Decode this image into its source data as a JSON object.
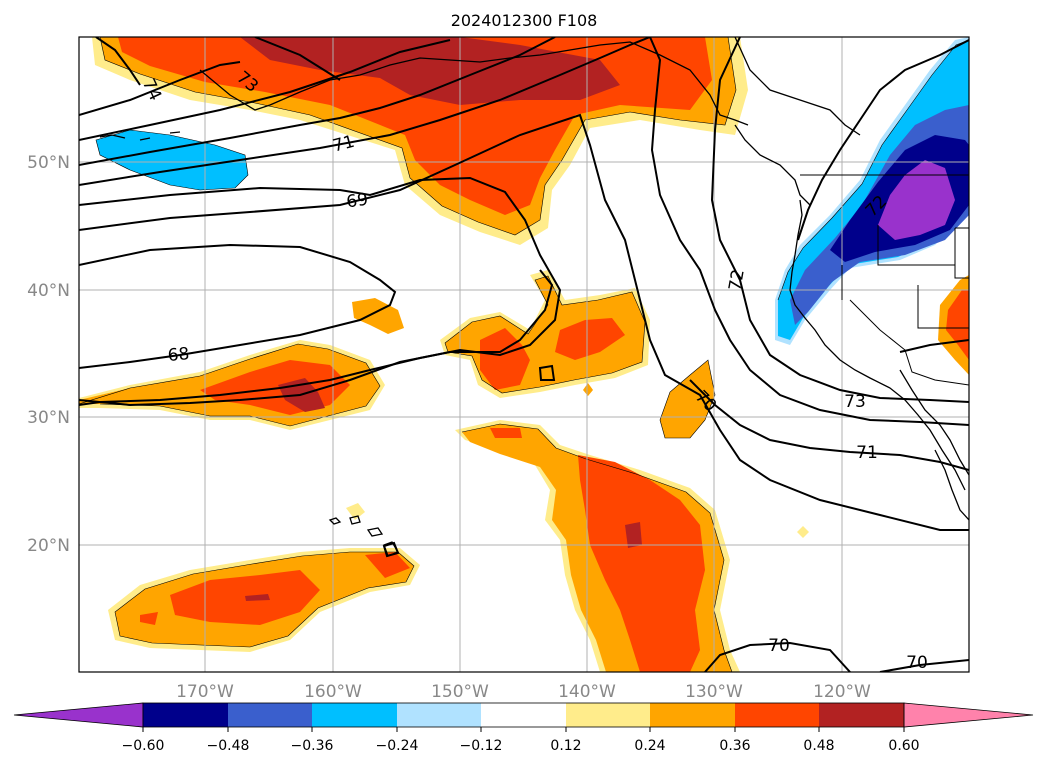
{
  "map": {
    "title": "2024012300 F108",
    "lat_labels": [
      "50°N",
      "40°N",
      "30°N",
      "20°N"
    ],
    "lon_labels": [
      "170°W",
      "160°W",
      "150°W",
      "140°W",
      "130°W",
      "120°W"
    ],
    "contour_labels": [
      "74",
      "73",
      "71",
      "69",
      "68",
      "72",
      "70",
      "73",
      "71",
      "70",
      "70",
      "72"
    ],
    "colors": {
      "axis_text": "#888888",
      "grid": "#b0b0b0",
      "contour": "#000000",
      "coast": "#000000"
    }
  },
  "colorbar": {
    "tick_labels": [
      "−0.60",
      "−0.48",
      "−0.36",
      "−0.24",
      "−0.12",
      "0.12",
      "0.24",
      "0.36",
      "0.48",
      "0.60"
    ],
    "colors": [
      "#9932cc",
      "#00008b",
      "#3a5fcd",
      "#00bfff",
      "#b0e2ff",
      "#ffffff",
      "#ffec8b",
      "#ffa500",
      "#ff4500",
      "#b22222",
      "#ff82ab"
    ]
  }
}
